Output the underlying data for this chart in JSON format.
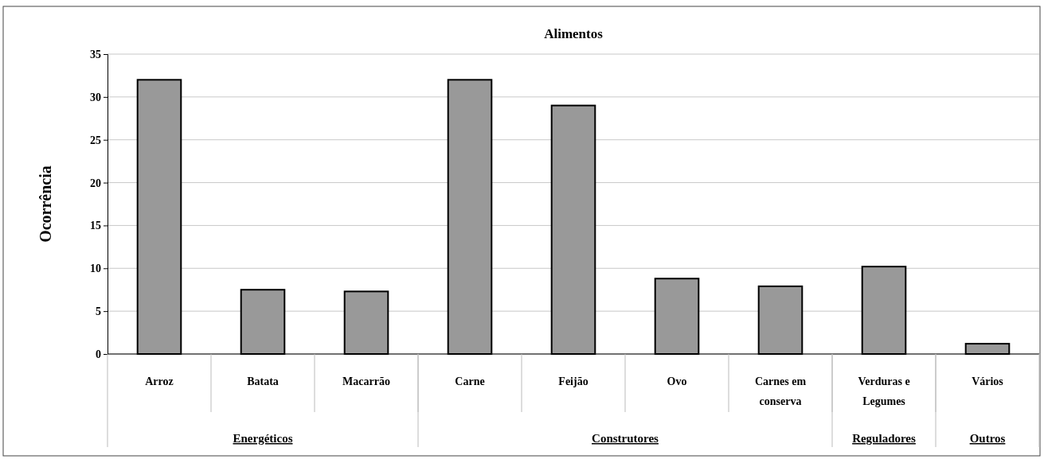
{
  "chart_data": {
    "type": "bar",
    "title": "Alimentos",
    "ylabel": "Ocorrência",
    "categories": [
      "Arroz",
      "Batata",
      "Macarrão",
      "Carne",
      "Feijão",
      "Ovo",
      "Carnes em conserva",
      "Verduras e Legumes",
      "Vários"
    ],
    "values": [
      32,
      7.5,
      7.3,
      32,
      29,
      8.8,
      7.9,
      10.2,
      1.2
    ],
    "color": "#999999",
    "ylim": [
      0,
      35
    ],
    "yticks": [
      0,
      5,
      10,
      15,
      20,
      25,
      30,
      35
    ],
    "grid": "y",
    "annotations": [
      "Energéticos",
      "Construtores",
      "Reguladores",
      "Outros"
    ]
  }
}
